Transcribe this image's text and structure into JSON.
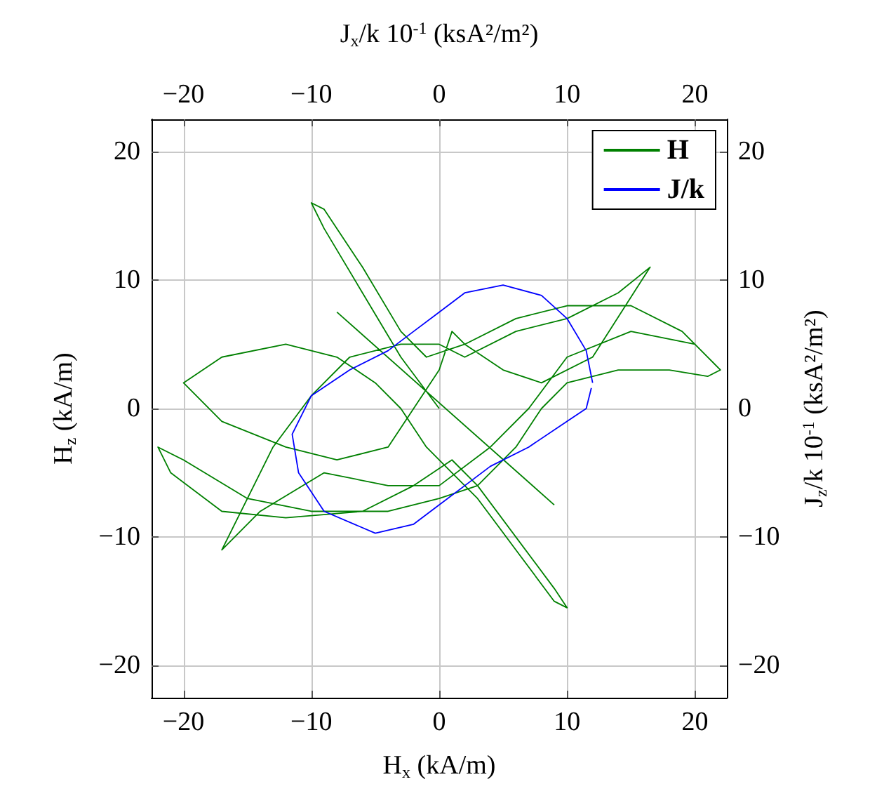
{
  "chart_data": {
    "type": "line",
    "xlabel": "H$_{x}$ (kA/m)",
    "ylabel": "H$_{z}$ (kA/m)",
    "x2label": "J$_{x}$/k 10$^{-1}$ (ksA²/m²)",
    "y2label": "J$_{z}$/k 10$^{-1}$ (ksA²/m²)",
    "xlim": [
      -22.5,
      22.5
    ],
    "ylim": [
      -22.5,
      22.5
    ],
    "x2lim": [
      -22.5,
      22.5
    ],
    "y2lim": [
      -22.5,
      22.5
    ],
    "xticks": [
      {
        "value": -20,
        "label": "−20"
      },
      {
        "value": -10,
        "label": "−10"
      },
      0,
      10,
      20
    ],
    "yticks": [
      {
        "value": -20,
        "label": "−20"
      },
      {
        "value": -10,
        "label": "−10"
      },
      0,
      10,
      20
    ],
    "x2ticks": [
      {
        "value": -20,
        "label": "−20"
      },
      {
        "value": -10,
        "label": "−10"
      },
      0,
      10,
      20
    ],
    "y2ticks": [
      {
        "value": -20,
        "label": "−20"
      },
      {
        "value": -10,
        "label": "−10"
      },
      0,
      10,
      20
    ],
    "grid": true,
    "legend": "top right",
    "marker": "none",
    "series": [
      {
        "name": "H",
        "color": "#008000",
        "x": [
          0,
          -3,
          -6,
          -9,
          -10,
          -9,
          -6,
          -3,
          -1,
          2,
          6,
          10,
          15,
          19,
          22,
          21,
          18,
          14,
          10,
          8,
          6,
          3,
          0,
          -4,
          -10,
          -15,
          -20,
          -22,
          -21,
          -17,
          -12,
          -6,
          -2,
          1,
          3,
          6,
          9,
          10,
          9,
          6,
          3,
          1,
          -1,
          -3,
          -5,
          -8,
          -12,
          -17,
          -20,
          -17,
          -12,
          -8,
          -4,
          -2,
          0,
          1,
          2,
          5,
          8,
          12,
          16.5,
          14,
          10,
          6,
          2,
          0,
          -3,
          -7,
          -10,
          -13,
          -17,
          -14,
          -9,
          -4,
          0,
          4,
          7,
          10,
          15,
          20,
          22,
          null,
          -8,
          9
        ],
        "values": [
          0,
          4,
          9,
          14,
          16,
          15.5,
          11,
          6,
          4,
          5,
          7,
          8,
          8,
          6,
          3,
          2.5,
          3,
          3,
          2,
          0,
          -3,
          -6,
          -7,
          -8,
          -8,
          -7,
          -4,
          -3,
          -5,
          -8,
          -8.5,
          -8,
          -6,
          -4,
          -6,
          -10,
          -14,
          -15.5,
          -15,
          -11,
          -7,
          -5,
          -3,
          0,
          2,
          4,
          5,
          4,
          2,
          -1,
          -3,
          -4,
          -3,
          0,
          3,
          6,
          5,
          3,
          2,
          4,
          11,
          9,
          7,
          6,
          4,
          5,
          5,
          4,
          1,
          -3,
          -11,
          -8,
          -5,
          -6,
          -6,
          -3,
          0,
          4,
          6,
          5,
          3,
          null,
          7.5,
          -7.5
        ]
      },
      {
        "name": "J/k",
        "color": "#0000ff",
        "x": [
          12,
          11.5,
          10,
          8,
          5,
          2,
          0,
          -2,
          -4,
          -7,
          -10,
          -11.5,
          -11,
          -9,
          -5,
          -2,
          0,
          2,
          4,
          7,
          10,
          11.5,
          11.9
        ],
        "values": [
          2,
          4.5,
          7,
          8.8,
          9.6,
          9,
          7.5,
          6,
          4.5,
          3,
          1,
          -2,
          -5,
          -8,
          -9.7,
          -9,
          -7.5,
          -6,
          -4.5,
          -3,
          -1,
          0,
          1.6
        ]
      }
    ]
  }
}
